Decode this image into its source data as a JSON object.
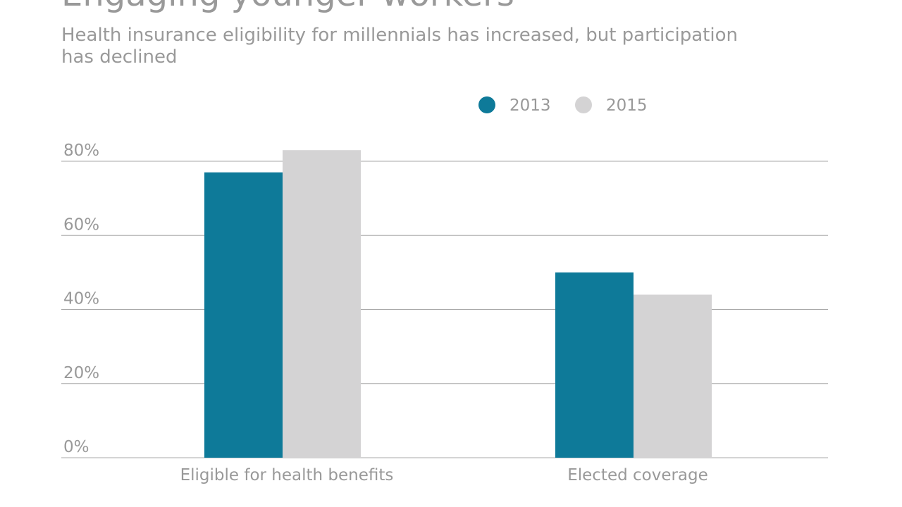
{
  "chart_data": {
    "type": "bar",
    "title": "Engaging younger workers",
    "subtitle": [
      "Health insurance eligibility for millennials has increased, but participation",
      "has declined"
    ],
    "categories": [
      "Eligible for health benefits",
      "Elected coverage"
    ],
    "series": [
      {
        "name": "2013",
        "color": "#0e7a99",
        "values": [
          77,
          50
        ]
      },
      {
        "name": "2015",
        "color": "#d4d3d4",
        "values": [
          83,
          44
        ]
      }
    ],
    "ylim": [
      0,
      80
    ],
    "yticks": [
      {
        "value": 0,
        "label": "0%"
      },
      {
        "value": 20,
        "label": "20%"
      },
      {
        "value": 40,
        "label": "40%"
      },
      {
        "value": 60,
        "label": "60%"
      },
      {
        "value": 80,
        "label": "80%"
      }
    ],
    "grid": true
  }
}
